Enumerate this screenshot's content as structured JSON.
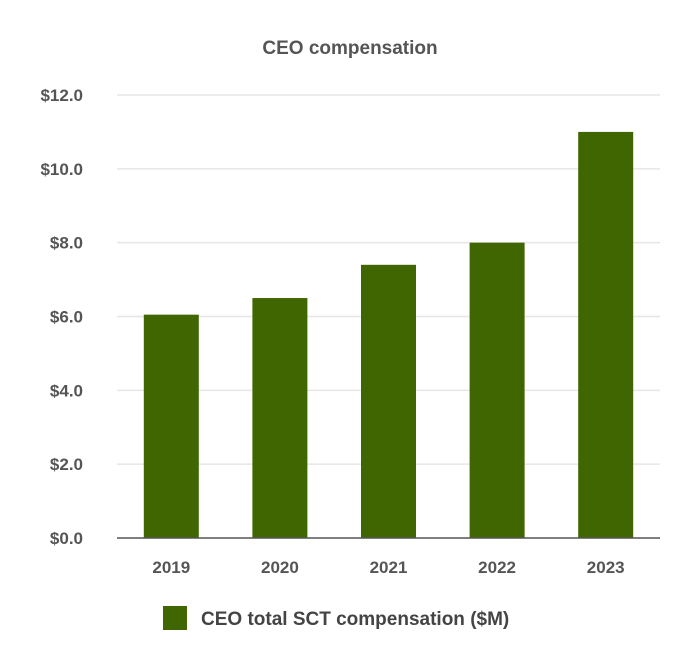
{
  "chart_data": {
    "type": "bar",
    "title": "CEO compensation",
    "categories": [
      "2019",
      "2020",
      "2021",
      "2022",
      "2023"
    ],
    "series": [
      {
        "name": "CEO total SCT compensation ($M)",
        "values": [
          6.05,
          6.5,
          7.4,
          8.0,
          11.0
        ],
        "color": "#3f6600"
      }
    ],
    "xlabel": "",
    "ylabel": "",
    "ylim": [
      0,
      12
    ],
    "yticks": [
      "$0.0",
      "$2.0",
      "$4.0",
      "$6.0",
      "$8.0",
      "$10.0",
      "$12.0"
    ],
    "grid": true,
    "legend_position": "bottom"
  }
}
